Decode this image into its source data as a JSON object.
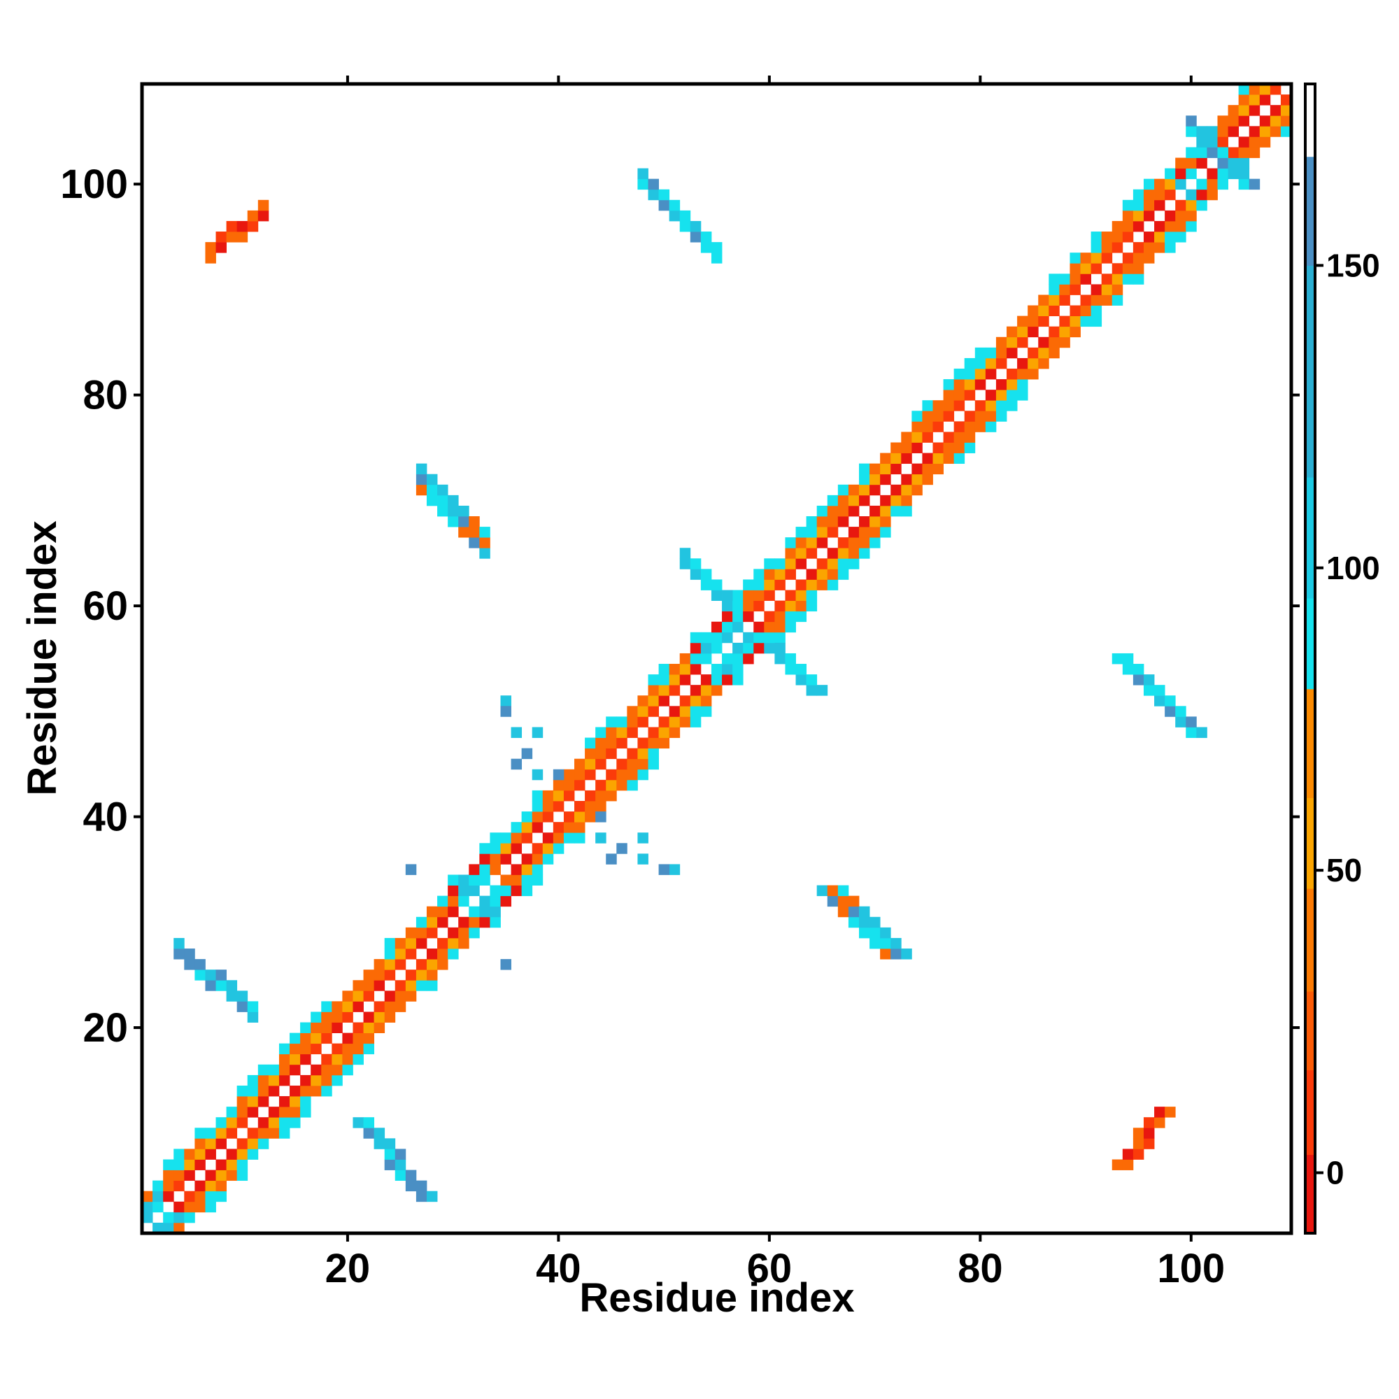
{
  "chart_data": {
    "type": "heatmap",
    "title": "",
    "xlabel": "Residue index",
    "ylabel": "Residue index",
    "xlim": [
      0.5,
      109.5
    ],
    "ylim": [
      0.5,
      109.5
    ],
    "xticks": [
      20,
      40,
      60,
      80,
      100
    ],
    "yticks": [
      20,
      40,
      60,
      80,
      100
    ],
    "xtick_labels": [
      "20",
      "40",
      "60",
      "80",
      "100"
    ],
    "ytick_labels": [
      "20",
      "40",
      "60",
      "80",
      "100"
    ],
    "grid": false,
    "colorbar": {
      "range": [
        -10,
        180
      ],
      "ticks": [
        0,
        50,
        100,
        150
      ],
      "tick_labels": [
        "0",
        "50",
        "100",
        "150"
      ],
      "bands": [
        {
          "from": -10,
          "to": 3,
          "color": "#e8170f"
        },
        {
          "from": 3,
          "to": 17,
          "color": "#fb3b0a"
        },
        {
          "from": 17,
          "to": 30,
          "color": "#fb5b06"
        },
        {
          "from": 30,
          "to": 47,
          "color": "#fb7a03"
        },
        {
          "from": 47,
          "to": 62,
          "color": "#fba500"
        },
        {
          "from": 62,
          "to": 80,
          "color": "#fb8a00"
        },
        {
          "from": 80,
          "to": 95,
          "color": "#16e2ee"
        },
        {
          "from": 95,
          "to": 115,
          "color": "#1ccae4"
        },
        {
          "from": 115,
          "to": 150,
          "color": "#2aaed2"
        },
        {
          "from": 150,
          "to": 168,
          "color": "#4a8fc4"
        },
        {
          "from": 168,
          "to": 180,
          "color": "#ffffff"
        }
      ]
    },
    "palette": {
      "red": "#e8170f",
      "red_orange": "#fb3b0a",
      "orange": "#fb6a05",
      "light_orange": "#fba500",
      "cyan": "#16e2ee",
      "sky": "#22c4e0",
      "steel_blue": "#4a8fc4"
    },
    "regions": [
      {
        "description": "main diagonal band (i to i+3 contacts)",
        "from": [
          1,
          1
        ],
        "to": [
          109,
          109
        ]
      },
      {
        "pair_i": [
          7,
          12
        ],
        "pair_j": [
          93,
          97
        ],
        "color_group": "orange-red"
      },
      {
        "pair_i": [
          93,
          98
        ],
        "pair_j": [
          7,
          12
        ],
        "color_group": "orange-red"
      },
      {
        "pair_i": [
          4,
          11
        ],
        "pair_j": [
          21,
          27
        ],
        "color_group": "blue"
      },
      {
        "pair_i": [
          21,
          27
        ],
        "pair_j": [
          4,
          11
        ],
        "color_group": "blue"
      },
      {
        "pair_i": [
          48,
          55
        ],
        "pair_j": [
          93,
          100
        ],
        "color_group": "blue"
      },
      {
        "pair_i": [
          93,
          100
        ],
        "pair_j": [
          48,
          55
        ],
        "color_group": "blue"
      },
      {
        "pair_i": [
          27,
          34
        ],
        "pair_j": [
          63,
          71
        ],
        "color_group": "blue"
      },
      {
        "pair_i": [
          63,
          71
        ],
        "pair_j": [
          27,
          34
        ],
        "color_group": "blue"
      },
      {
        "pair_i": [
          52,
          57
        ],
        "pair_j": [
          59,
          64
        ],
        "color_group": "cyan"
      },
      {
        "pair_i": [
          59,
          64
        ],
        "pair_j": [
          52,
          57
        ],
        "color_group": "cyan"
      },
      {
        "pair_i": [
          100,
          105
        ],
        "pair_j": [
          100,
          105
        ],
        "color_group": "cyan"
      }
    ]
  }
}
